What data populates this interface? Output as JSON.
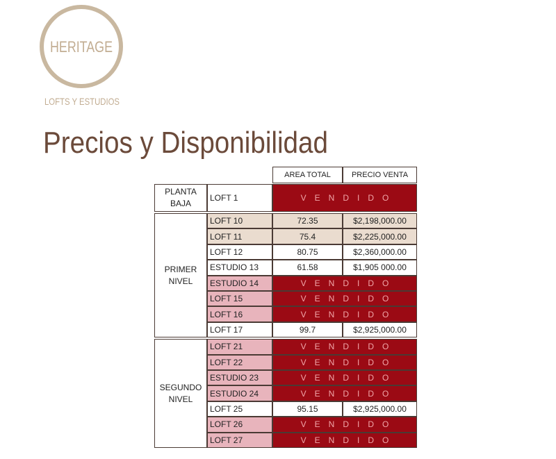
{
  "logo": {
    "name": "HERITAGE",
    "tagline": "LOFTS Y ESTUDIOS"
  },
  "title": "Precios y Disponibilidad",
  "table": {
    "headers": [
      "AREA TOTAL",
      "PRECIO VENTA"
    ],
    "groups": [
      {
        "label": "PLANTA BAJA",
        "rows": [
          {
            "unit": "LOFT 1",
            "status": "VENDIDO"
          }
        ]
      },
      {
        "label": "PRIMER NIVEL",
        "rows": [
          {
            "unit": "LOFT 10",
            "area": 72.35,
            "price": "$2,198,000.00"
          },
          {
            "unit": "LOFT 11",
            "area": 75.4,
            "price": "$2,225,000.00"
          },
          {
            "unit": "LOFT 12",
            "area": 80.75,
            "price": "$2,360,000.00"
          },
          {
            "unit": "ESTUDIO 13",
            "area": 61.58,
            "price": "$1,905 000.00"
          },
          {
            "unit": "ESTUDIO 14",
            "status": "VENDIDO"
          },
          {
            "unit": "LOFT 15",
            "status": "VENDIDO"
          },
          {
            "unit": "LOFT 16",
            "status": "VENDIDO"
          },
          {
            "unit": "LOFT 17",
            "area": 99.7,
            "price": "$2,925,000.00"
          }
        ]
      },
      {
        "label": "SEGUNDO NIVEL",
        "rows": [
          {
            "unit": "LOFT 21",
            "status": "VENDIDO"
          },
          {
            "unit": "LOFT 22",
            "status": "VENDIDO"
          },
          {
            "unit": "ESTUDIO 23",
            "status": "VENDIDO"
          },
          {
            "unit": "ESTUDIO 24",
            "status": "VENDIDO"
          },
          {
            "unit": "LOFT 25",
            "area": 95.15,
            "price": "$2,925,000.00"
          },
          {
            "unit": "LOFT 26",
            "status": "VENDIDO"
          },
          {
            "unit": "LOFT 27",
            "status": "VENDIDO"
          }
        ]
      }
    ]
  }
}
